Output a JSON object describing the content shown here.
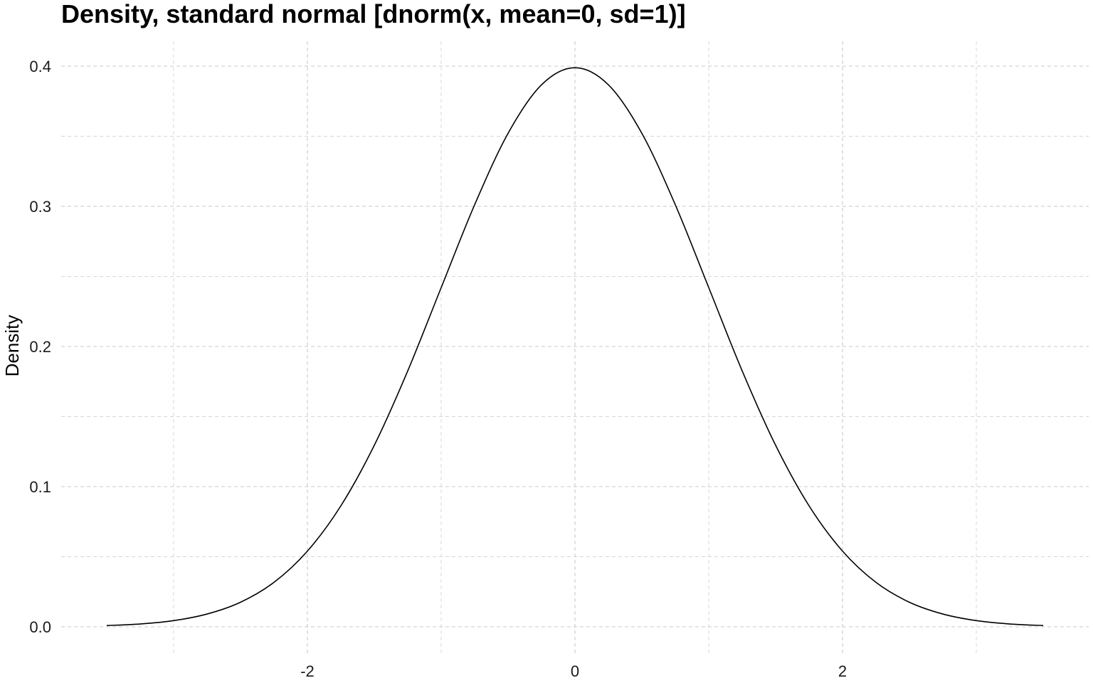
{
  "chart_data": {
    "type": "line",
    "title": "Density, standard normal [dnorm(x, mean=0, sd=1)]",
    "xlabel": "",
    "ylabel": "Density",
    "xlim": [
      -3.5,
      3.5
    ],
    "ylim": [
      0,
      0.4
    ],
    "x_ticks": [
      -2,
      0,
      2
    ],
    "x_tick_labels": [
      "-2",
      "0",
      "2"
    ],
    "x_minor_gridlines": [
      -3,
      -1,
      1,
      3
    ],
    "y_ticks": [
      0.0,
      0.1,
      0.2,
      0.3,
      0.4
    ],
    "y_tick_labels": [
      "0.0",
      "0.1",
      "0.2",
      "0.3",
      "0.4"
    ],
    "y_minor_gridlines": [
      0.05,
      0.15,
      0.25,
      0.35
    ],
    "grid": "dashed",
    "legend": "none",
    "line_color": "#000000",
    "series": [
      {
        "x": [
          -3.5,
          -3.25,
          -3.0,
          -2.75,
          -2.5,
          -2.25,
          -2.0,
          -1.75,
          -1.5,
          -1.25,
          -1.0,
          -0.75,
          -0.5,
          -0.25,
          0.0,
          0.25,
          0.5,
          0.75,
          1.0,
          1.25,
          1.5,
          1.75,
          2.0,
          2.25,
          2.5,
          2.75,
          3.0,
          3.25,
          3.5
        ],
        "y": [
          0.0009,
          0.002,
          0.0044,
          0.0091,
          0.0175,
          0.0317,
          0.054,
          0.0863,
          0.1295,
          0.1826,
          0.242,
          0.3011,
          0.3521,
          0.3867,
          0.3989,
          0.3867,
          0.3521,
          0.3011,
          0.242,
          0.1826,
          0.1295,
          0.0863,
          0.054,
          0.0317,
          0.0175,
          0.0091,
          0.0044,
          0.002,
          0.0009
        ]
      }
    ]
  }
}
